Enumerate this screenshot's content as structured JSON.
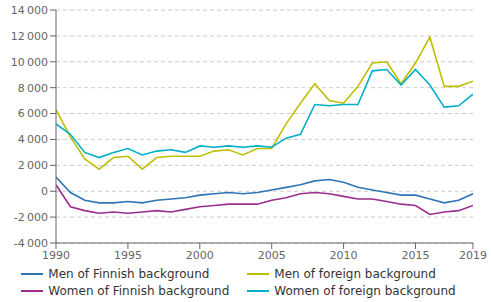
{
  "chart_data": {
    "type": "line",
    "x": [
      1990,
      1991,
      1992,
      1993,
      1994,
      1995,
      1996,
      1997,
      1998,
      1999,
      2000,
      2001,
      2002,
      2003,
      2004,
      2005,
      2006,
      2007,
      2008,
      2009,
      2010,
      2011,
      2012,
      2013,
      2014,
      2015,
      2016,
      2017,
      2018,
      2019
    ],
    "series": [
      {
        "name": "Men of Finnish background",
        "color": "#2E75B6",
        "values": [
          1100,
          -100,
          -700,
          -900,
          -900,
          -800,
          -900,
          -700,
          -600,
          -500,
          -300,
          -200,
          -100,
          -200,
          -100,
          100,
          300,
          500,
          800,
          900,
          700,
          300,
          100,
          -100,
          -300,
          -300,
          -600,
          -900,
          -700,
          -200
        ]
      },
      {
        "name": "Men of foreign background",
        "color": "#BFBF00",
        "values": [
          6300,
          4200,
          2500,
          1700,
          2600,
          2700,
          1700,
          2600,
          2700,
          2700,
          2700,
          3100,
          3200,
          2800,
          3300,
          3300,
          5200,
          6800,
          8300,
          7000,
          6800,
          8100,
          9900,
          10000,
          8300,
          9900,
          11900,
          8100,
          8100,
          8500
        ]
      },
      {
        "name": "Women of Finnish background",
        "color": "#9B2D8E",
        "values": [
          500,
          -1200,
          -1500,
          -1700,
          -1600,
          -1700,
          -1600,
          -1500,
          -1600,
          -1400,
          -1200,
          -1100,
          -1000,
          -1000,
          -1000,
          -700,
          -500,
          -200,
          -100,
          -200,
          -400,
          -600,
          -600,
          -800,
          -1000,
          -1100,
          -1800,
          -1600,
          -1500,
          -1100
        ]
      },
      {
        "name": "Women of foreign background",
        "color": "#00B0C8",
        "values": [
          5200,
          4400,
          3000,
          2600,
          3000,
          3300,
          2800,
          3100,
          3200,
          3000,
          3500,
          3400,
          3500,
          3400,
          3500,
          3400,
          4100,
          4400,
          6700,
          6600,
          6700,
          6700,
          9300,
          9400,
          8200,
          9400,
          8200,
          6500,
          6600,
          7500
        ]
      }
    ],
    "xlim": [
      1990,
      2019
    ],
    "xticks": [
      1990,
      1995,
      2000,
      2005,
      2010,
      2015,
      2019
    ],
    "ylim": [
      -4000,
      14000
    ],
    "yticks": [
      {
        "value": -4000,
        "label": "-4 000"
      },
      {
        "value": -2000,
        "label": "-2 000"
      },
      0,
      {
        "value": 2000,
        "label": "2 000"
      },
      {
        "value": 4000,
        "label": "4 000"
      },
      {
        "value": 6000,
        "label": "6 000"
      },
      {
        "value": 8000,
        "label": "8 000"
      },
      {
        "value": 10000,
        "label": "10 000"
      },
      {
        "value": 12000,
        "label": "12 000"
      },
      {
        "value": 14000,
        "label": "14 000"
      }
    ],
    "grid": true,
    "legend": "bottom"
  }
}
